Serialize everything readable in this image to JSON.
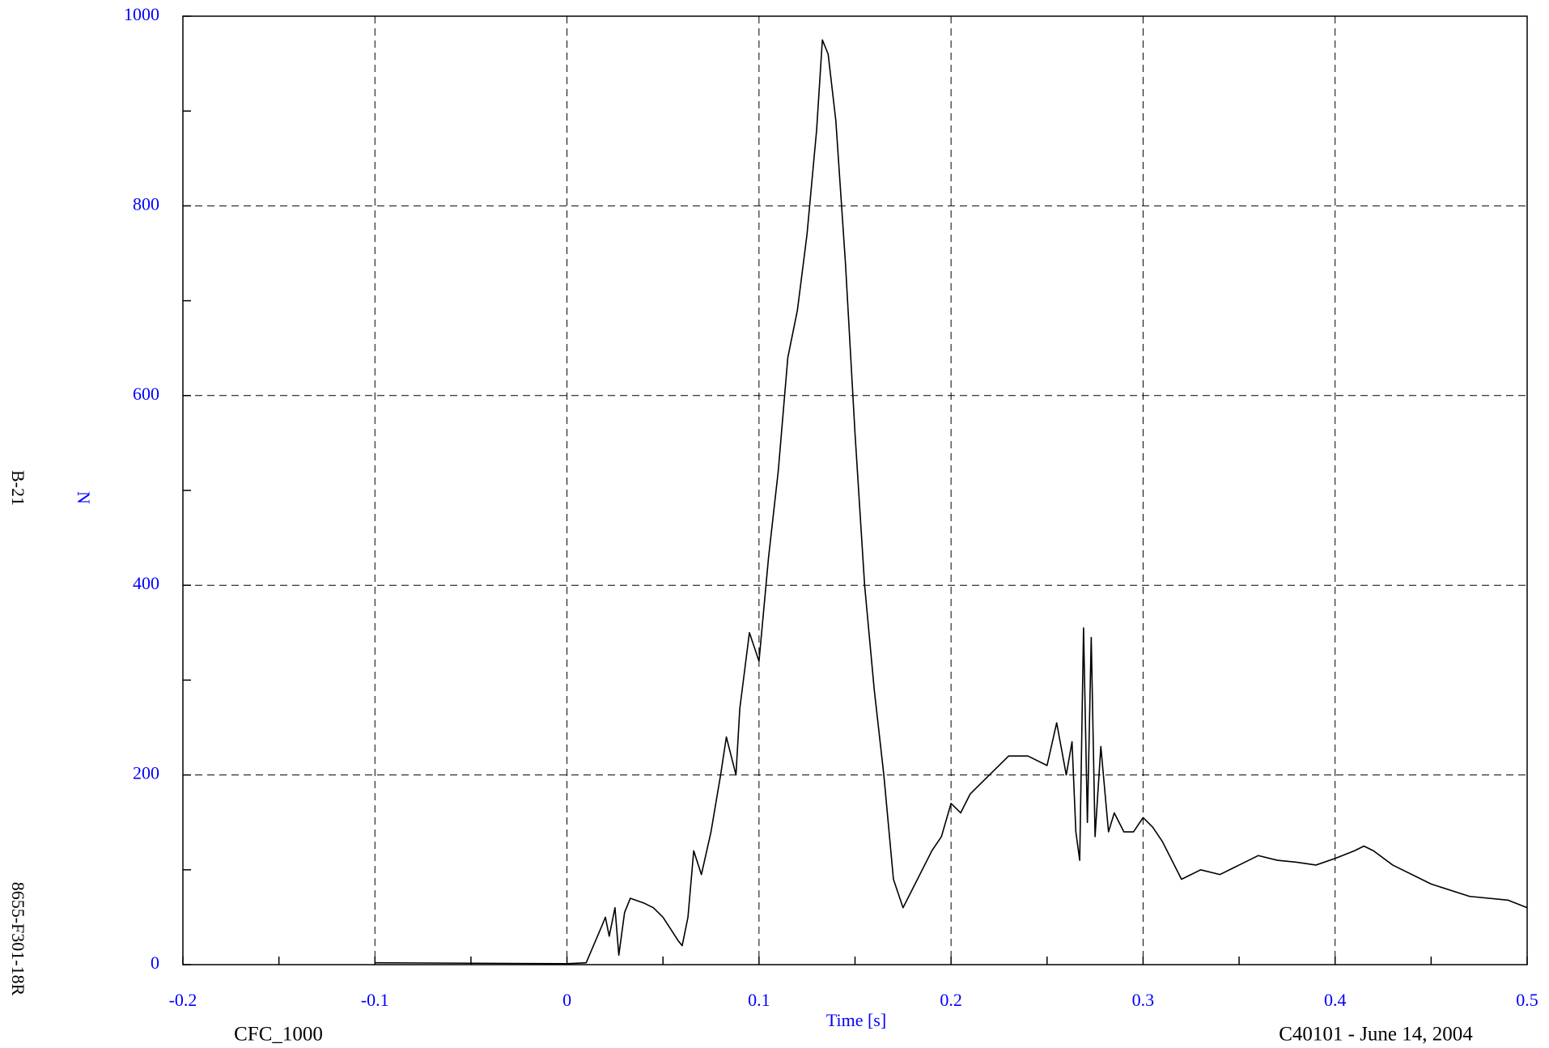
{
  "chart_data": {
    "type": "line",
    "ylabel": "N",
    "xlabel": "Time [s]",
    "left_labels": [
      "B-21",
      "8655-F301-18R"
    ],
    "footer_left": "CFC_1000",
    "footer_right": "C40101 - June 14, 2004",
    "xlim": [
      -0.2,
      0.5
    ],
    "xticks": [
      -0.2,
      -0.1,
      0,
      0.1,
      0.2,
      0.3,
      0.4,
      0.5
    ],
    "ylim": [
      0,
      1000
    ],
    "yticks": [
      0,
      200,
      400,
      600,
      800,
      1000
    ],
    "grid": true,
    "tick_color": "#0000ff",
    "series": [
      {
        "name": "N",
        "color": "#000000",
        "x": [
          -0.1,
          0,
          0.01,
          0.018,
          0.02,
          0.022,
          0.025,
          0.027,
          0.03,
          0.033,
          0.04,
          0.045,
          0.05,
          0.058,
          0.06,
          0.063,
          0.066,
          0.07,
          0.075,
          0.08,
          0.083,
          0.088,
          0.09,
          0.095,
          0.1,
          0.105,
          0.11,
          0.115,
          0.12,
          0.125,
          0.13,
          0.133,
          0.136,
          0.14,
          0.145,
          0.15,
          0.155,
          0.16,
          0.165,
          0.17,
          0.175,
          0.18,
          0.19,
          0.195,
          0.2,
          0.205,
          0.21,
          0.22,
          0.23,
          0.24,
          0.25,
          0.255,
          0.26,
          0.263,
          0.265,
          0.267,
          0.269,
          0.271,
          0.273,
          0.275,
          0.278,
          0.282,
          0.285,
          0.29,
          0.295,
          0.3,
          0.305,
          0.31,
          0.32,
          0.33,
          0.34,
          0.35,
          0.36,
          0.37,
          0.38,
          0.39,
          0.4,
          0.41,
          0.415,
          0.42,
          0.43,
          0.45,
          0.47,
          0.49,
          0.5
        ],
        "values": [
          2,
          1,
          2,
          40,
          50,
          30,
          60,
          10,
          55,
          70,
          65,
          60,
          50,
          25,
          20,
          50,
          120,
          95,
          140,
          200,
          240,
          200,
          270,
          350,
          320,
          430,
          520,
          640,
          690,
          770,
          880,
          975,
          960,
          890,
          740,
          560,
          400,
          290,
          200,
          90,
          60,
          80,
          120,
          135,
          170,
          160,
          180,
          200,
          220,
          220,
          210,
          255,
          200,
          235,
          140,
          110,
          355,
          150,
          345,
          135,
          230,
          140,
          160,
          140,
          140,
          155,
          145,
          130,
          90,
          100,
          95,
          105,
          115,
          110,
          108,
          105,
          112,
          120,
          125,
          120,
          105,
          85,
          72,
          68,
          60
        ]
      }
    ]
  }
}
